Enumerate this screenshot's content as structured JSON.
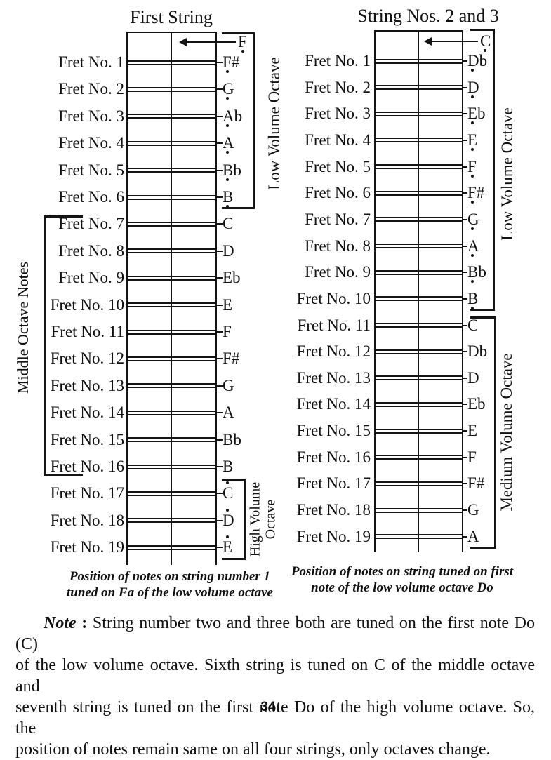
{
  "diagrams": [
    {
      "title": "First String",
      "open_note": {
        "note": "F",
        "dot": "below"
      },
      "frets": [
        {
          "label": "Fret No. 1",
          "note": "F#",
          "dot": "below"
        },
        {
          "label": "Fret No. 2",
          "note": "G",
          "dot": "below"
        },
        {
          "label": "Fret No. 3",
          "note": "Ab",
          "dot": "below"
        },
        {
          "label": "Fret No. 4",
          "note": "A",
          "dot": "below"
        },
        {
          "label": "Fret No. 5",
          "note": "Bb",
          "dot": "below"
        },
        {
          "label": "Fret No. 6",
          "note": "B",
          "dot": "below"
        },
        {
          "label": "Fret No. 7",
          "note": "C",
          "dot": "none"
        },
        {
          "label": "Fret No. 8",
          "note": "D",
          "dot": "none"
        },
        {
          "label": "Fret No. 9",
          "note": "Eb",
          "dot": "none"
        },
        {
          "label": "Fret No. 10",
          "note": "E",
          "dot": "none"
        },
        {
          "label": "Fret No. 11",
          "note": "F",
          "dot": "none"
        },
        {
          "label": "Fret No. 12",
          "note": "F#",
          "dot": "none"
        },
        {
          "label": "Fret No. 13",
          "note": "G",
          "dot": "none"
        },
        {
          "label": "Fret No. 14",
          "note": "A",
          "dot": "none"
        },
        {
          "label": "Fret No. 15",
          "note": "Bb",
          "dot": "none"
        },
        {
          "label": "Fret No. 16",
          "note": "B",
          "dot": "none"
        },
        {
          "label": "Fret No. 17",
          "note": "C",
          "dot": "above"
        },
        {
          "label": "Fret No. 18",
          "note": "D",
          "dot": "above"
        },
        {
          "label": "Fret No. 19",
          "note": "E",
          "dot": "above"
        }
      ],
      "side_labels": {
        "right_top": "Low Volume Octave",
        "left": "Middle Octave Notes",
        "right_bottom": [
          "High Volume",
          "Octave"
        ]
      },
      "caption": [
        "Position of notes on string number 1",
        "tuned on Fa of the low volume octave"
      ]
    },
    {
      "title": "String Nos. 2 and 3",
      "open_note": {
        "note": "C",
        "dot": "below"
      },
      "frets": [
        {
          "label": "Fret No. 1",
          "note": "Db",
          "dot": "below"
        },
        {
          "label": "Fret No. 2",
          "note": "D",
          "dot": "below"
        },
        {
          "label": "Fret No. 3",
          "note": "Eb",
          "dot": "below"
        },
        {
          "label": "Fret No. 4",
          "note": "E",
          "dot": "below"
        },
        {
          "label": "Fret No. 5",
          "note": "F",
          "dot": "below"
        },
        {
          "label": "Fret No. 6",
          "note": "F#",
          "dot": "below"
        },
        {
          "label": "Fret No. 7",
          "note": "G",
          "dot": "below"
        },
        {
          "label": "Fret No. 8",
          "note": "A",
          "dot": "below"
        },
        {
          "label": "Fret No. 9",
          "note": "Bb",
          "dot": "below"
        },
        {
          "label": "Fret No. 10",
          "note": "B",
          "dot": "below"
        },
        {
          "label": "Fret No. 11",
          "note": "C",
          "dot": "none"
        },
        {
          "label": "Fret No. 12",
          "note": "Db",
          "dot": "none"
        },
        {
          "label": "Fret No. 13",
          "note": "D",
          "dot": "none"
        },
        {
          "label": "Fret No. 14",
          "note": "Eb",
          "dot": "none"
        },
        {
          "label": "Fret No. 15",
          "note": "E",
          "dot": "none"
        },
        {
          "label": "Fret No. 16",
          "note": "F",
          "dot": "none"
        },
        {
          "label": "Fret No. 17",
          "note": "F#",
          "dot": "none"
        },
        {
          "label": "Fret No. 18",
          "note": "G",
          "dot": "none"
        },
        {
          "label": "Fret No. 19",
          "note": "A",
          "dot": "none"
        }
      ],
      "side_labels": {
        "right_top": "Low Volume Octave",
        "right_bottom": "Medium Volume Octave"
      },
      "caption": [
        "Position of notes on string tuned on first",
        "note of the low volume octave Do"
      ]
    }
  ],
  "note_block": {
    "label": "Note",
    "separator": " : ",
    "lines": [
      "String number two and three both are tuned on the first note Do (C)",
      "of the low volume octave. Sixth string is tuned on C of the middle octave and",
      "seventh string is tuned on the first note Do of the high volume octave. So, the",
      "position of notes remain same on all four strings, only octaves change."
    ]
  },
  "page_number": "34"
}
